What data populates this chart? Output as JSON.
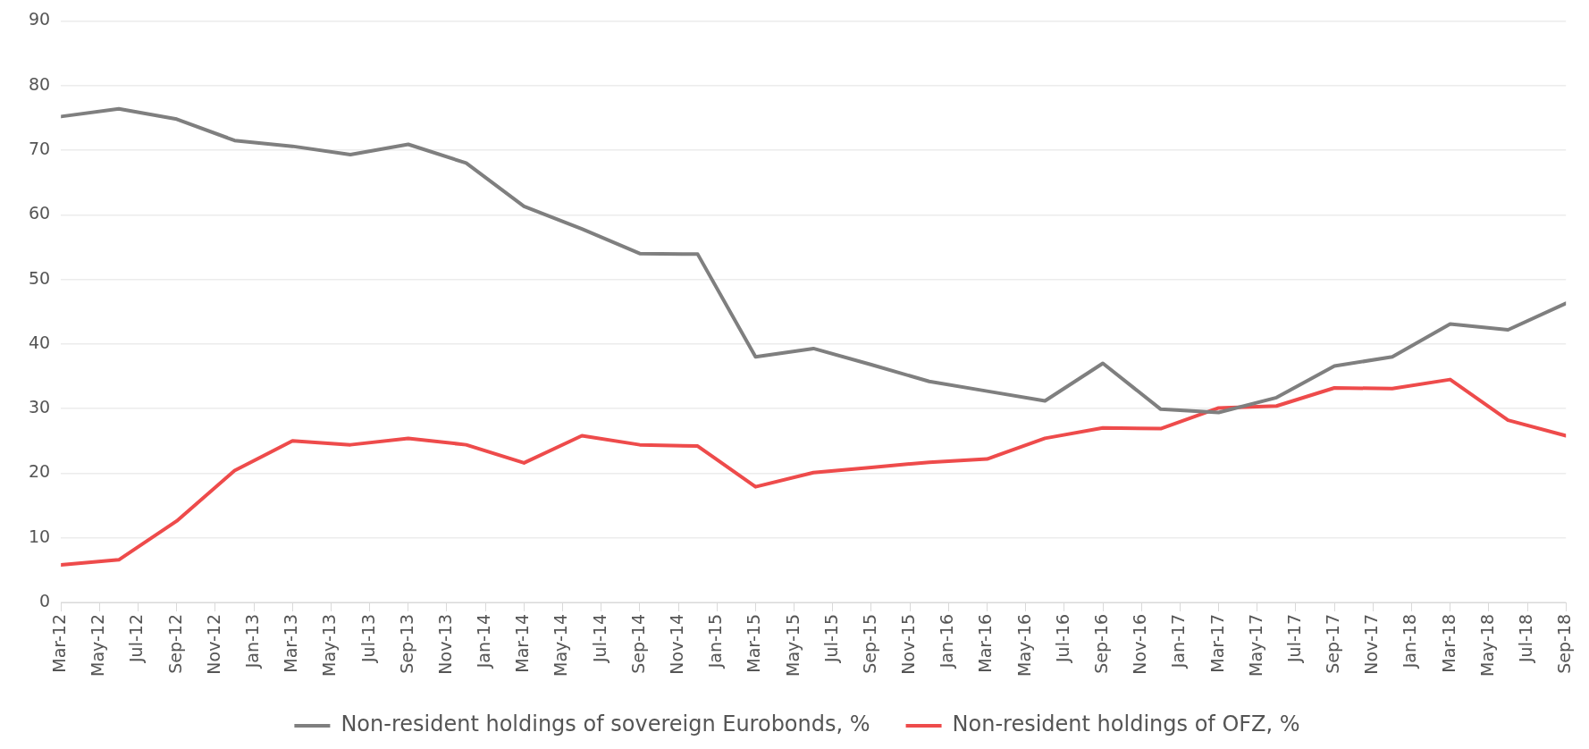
{
  "chart_data": {
    "type": "line",
    "x": [
      "2012-03",
      "2012-06",
      "2012-09",
      "2012-12",
      "2013-03",
      "2013-06",
      "2013-09",
      "2013-12",
      "2014-03",
      "2014-06",
      "2014-09",
      "2014-12",
      "2015-03",
      "2015-06",
      "2015-09",
      "2015-12",
      "2016-03",
      "2016-06",
      "2016-09",
      "2016-12",
      "2017-03",
      "2017-06",
      "2017-09",
      "2017-12",
      "2018-03",
      "2018-06",
      "2018-09"
    ],
    "series": [
      {
        "name": "Non-resident holdings of sovereign Eurobonds, %",
        "color": "#7f7f7f",
        "values": [
          75.2,
          76.4,
          74.8,
          71.5,
          70.6,
          69.3,
          70.9,
          68.0,
          61.3,
          57.8,
          54.0,
          53.9,
          38.0,
          39.3,
          36.8,
          34.2,
          32.7,
          31.2,
          37.0,
          29.9,
          29.4,
          31.7,
          36.6,
          38.0,
          43.1,
          42.2,
          46.3
        ]
      },
      {
        "name": "Non-resident holdings of OFZ, %",
        "color": "#ee4b4b",
        "values": [
          5.8,
          6.6,
          12.6,
          20.4,
          25.0,
          24.4,
          25.4,
          24.4,
          21.6,
          25.8,
          24.4,
          24.2,
          17.9,
          20.1,
          20.9,
          21.7,
          22.2,
          25.4,
          27.0,
          26.9,
          30.1,
          30.4,
          33.2,
          33.1,
          34.5,
          28.2,
          25.8
        ]
      }
    ],
    "xlim": [
      "2012-03",
      "2018-09"
    ],
    "xticks": [
      {
        "value": "2012-03",
        "label": "Mar-12"
      },
      {
        "value": "2012-05",
        "label": "May-12"
      },
      {
        "value": "2012-07",
        "label": "Jul-12"
      },
      {
        "value": "2012-09",
        "label": "Sep-12"
      },
      {
        "value": "2012-11",
        "label": "Nov-12"
      },
      {
        "value": "2013-01",
        "label": "Jan-13"
      },
      {
        "value": "2013-03",
        "label": "Mar-13"
      },
      {
        "value": "2013-05",
        "label": "May-13"
      },
      {
        "value": "2013-07",
        "label": "Jul-13"
      },
      {
        "value": "2013-09",
        "label": "Sep-13"
      },
      {
        "value": "2013-11",
        "label": "Nov-13"
      },
      {
        "value": "2014-01",
        "label": "Jan-14"
      },
      {
        "value": "2014-03",
        "label": "Mar-14"
      },
      {
        "value": "2014-05",
        "label": "May-14"
      },
      {
        "value": "2014-07",
        "label": "Jul-14"
      },
      {
        "value": "2014-09",
        "label": "Sep-14"
      },
      {
        "value": "2014-11",
        "label": "Nov-14"
      },
      {
        "value": "2015-01",
        "label": "Jan-15"
      },
      {
        "value": "2015-03",
        "label": "Mar-15"
      },
      {
        "value": "2015-05",
        "label": "May-15"
      },
      {
        "value": "2015-07",
        "label": "Jul-15"
      },
      {
        "value": "2015-09",
        "label": "Sep-15"
      },
      {
        "value": "2015-11",
        "label": "Nov-15"
      },
      {
        "value": "2016-01",
        "label": "Jan-16"
      },
      {
        "value": "2016-03",
        "label": "Mar-16"
      },
      {
        "value": "2016-05",
        "label": "May-16"
      },
      {
        "value": "2016-07",
        "label": "Jul-16"
      },
      {
        "value": "2016-09",
        "label": "Sep-16"
      },
      {
        "value": "2016-11",
        "label": "Nov-16"
      },
      {
        "value": "2017-01",
        "label": "Jan-17"
      },
      {
        "value": "2017-03",
        "label": "Mar-17"
      },
      {
        "value": "2017-05",
        "label": "May-17"
      },
      {
        "value": "2017-07",
        "label": "Jul-17"
      },
      {
        "value": "2017-09",
        "label": "Sep-17"
      },
      {
        "value": "2017-11",
        "label": "Nov-17"
      },
      {
        "value": "2018-01",
        "label": "Jan-18"
      },
      {
        "value": "2018-03",
        "label": "Mar-18"
      },
      {
        "value": "2018-05",
        "label": "May-18"
      },
      {
        "value": "2018-07",
        "label": "Jul-18"
      },
      {
        "value": "2018-09",
        "label": "Sep-18"
      }
    ],
    "ylim": [
      0,
      90
    ],
    "yticks": [
      0,
      10,
      20,
      30,
      40,
      50,
      60,
      70,
      80,
      90
    ],
    "grid": "y",
    "legend": "bottom",
    "marker": "none",
    "line_style": "solid"
  }
}
